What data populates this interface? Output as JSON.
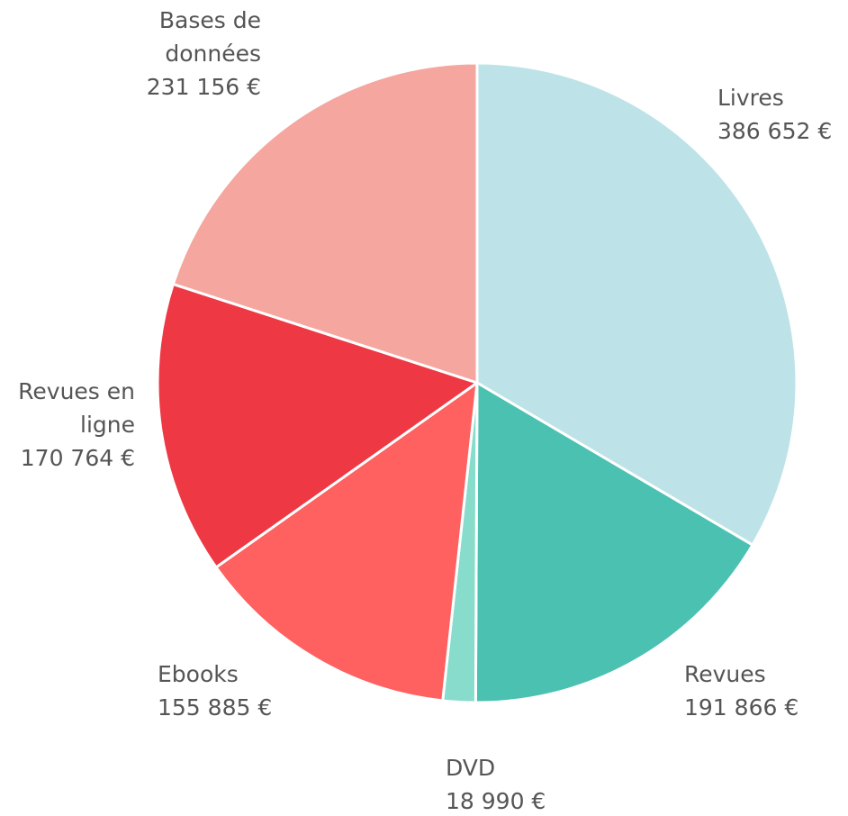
{
  "chart_data": {
    "type": "pie",
    "categories": [
      "Livres",
      "Revues",
      "DVD",
      "Ebooks",
      "Revues en ligne",
      "Bases de données"
    ],
    "values": [
      386652,
      191866,
      18990,
      155885,
      170764,
      231156
    ],
    "value_labels": [
      "386 652 €",
      "191 866 €",
      "18 990 €",
      "155 885 €",
      "170 764 €",
      "231 156 €"
    ],
    "colors": [
      "#bde3e8",
      "#4bc1b1",
      "#87dccc",
      "#ff6060",
      "#ee3843",
      "#f4a69f"
    ]
  }
}
